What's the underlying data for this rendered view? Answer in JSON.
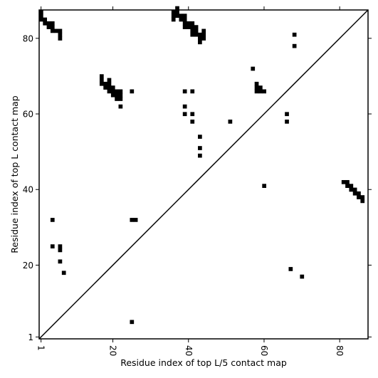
{
  "chart_data": {
    "type": "heatmap",
    "title": "",
    "xlabel": "Residue index of top L/5 contact map",
    "ylabel": "Residue index of top L contact map",
    "xlim": [
      0.5,
      87.5
    ],
    "ylim": [
      0.5,
      87.5
    ],
    "xticks": [
      1,
      20,
      40,
      60,
      80
    ],
    "yticks": [
      1,
      20,
      40,
      60,
      80
    ],
    "x_tick_rotation": "rotated -90",
    "diagonal_line": true,
    "grid": false,
    "marker_color": "#000000",
    "lower_triangle_points": [
      [
        25,
        5
      ],
      [
        7,
        18
      ],
      [
        6,
        21
      ],
      [
        6,
        24
      ],
      [
        6,
        25
      ],
      [
        4,
        25
      ],
      [
        67,
        19
      ],
      [
        70,
        17
      ],
      [
        4,
        32
      ],
      [
        25,
        32
      ],
      [
        26,
        32
      ],
      [
        60,
        41
      ],
      [
        81,
        42
      ],
      [
        82,
        42
      ],
      [
        82,
        41
      ],
      [
        83,
        41
      ],
      [
        83,
        40
      ],
      [
        84,
        40
      ],
      [
        84,
        39
      ],
      [
        85,
        39
      ],
      [
        85,
        38
      ],
      [
        86,
        38
      ],
      [
        86,
        37
      ],
      [
        43,
        49
      ],
      [
        43,
        51
      ],
      [
        43,
        54
      ],
      [
        41,
        58
      ],
      [
        51,
        58
      ],
      [
        66,
        58
      ],
      [
        39,
        60
      ],
      [
        41,
        60
      ],
      [
        66,
        60
      ],
      [
        39,
        62
      ],
      [
        22,
        62
      ],
      [
        39,
        66
      ],
      [
        41,
        66
      ],
      [
        25,
        66
      ],
      [
        58,
        66
      ],
      [
        59,
        66
      ],
      [
        60,
        66
      ],
      [
        58,
        67
      ],
      [
        59,
        67
      ],
      [
        58,
        68
      ],
      [
        57,
        72
      ],
      [
        68,
        78
      ],
      [
        68,
        81
      ],
      [
        17,
        68
      ],
      [
        18,
        68
      ],
      [
        19,
        68
      ],
      [
        17,
        69
      ],
      [
        19,
        69
      ],
      [
        17,
        70
      ],
      [
        18,
        67
      ],
      [
        19,
        67
      ],
      [
        20,
        67
      ],
      [
        19,
        66
      ],
      [
        20,
        66
      ],
      [
        21,
        66
      ],
      [
        22,
        66
      ],
      [
        20,
        65
      ],
      [
        21,
        65
      ],
      [
        22,
        65
      ],
      [
        21,
        64
      ],
      [
        22,
        64
      ]
    ],
    "upper_triangle_points": [
      [
        1,
        87
      ],
      [
        1,
        86
      ],
      [
        1,
        85
      ],
      [
        2,
        85
      ],
      [
        2,
        84
      ],
      [
        3,
        84
      ],
      [
        4,
        84
      ],
      [
        3,
        83
      ],
      [
        4,
        83
      ],
      [
        4,
        82
      ],
      [
        5,
        82
      ],
      [
        6,
        82
      ],
      [
        6,
        81
      ],
      [
        6,
        80
      ],
      [
        37,
        88
      ],
      [
        36,
        87
      ],
      [
        37,
        87
      ],
      [
        36,
        86
      ],
      [
        37,
        86
      ],
      [
        38,
        86
      ],
      [
        39,
        86
      ],
      [
        36,
        85
      ],
      [
        38,
        85
      ],
      [
        39,
        85
      ],
      [
        39,
        84
      ],
      [
        40,
        84
      ],
      [
        41,
        84
      ],
      [
        39,
        83
      ],
      [
        40,
        83
      ],
      [
        41,
        83
      ],
      [
        42,
        83
      ],
      [
        41,
        82
      ],
      [
        42,
        82
      ],
      [
        44,
        82
      ],
      [
        41,
        81
      ],
      [
        42,
        81
      ],
      [
        43,
        81
      ],
      [
        44,
        81
      ],
      [
        43,
        80
      ],
      [
        44,
        80
      ],
      [
        43,
        79
      ]
    ]
  }
}
